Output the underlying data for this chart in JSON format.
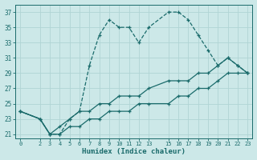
{
  "xlabel": "Humidex (Indice chaleur)",
  "bg_color": "#cce8e8",
  "line_color": "#1a6b6b",
  "grid_color": "#b0d4d4",
  "ylim": [
    20.5,
    38
  ],
  "xlim": [
    -0.5,
    23.5
  ],
  "yticks": [
    21,
    23,
    25,
    27,
    29,
    31,
    33,
    35,
    37
  ],
  "xticks": [
    0,
    2,
    3,
    4,
    5,
    6,
    7,
    8,
    9,
    10,
    11,
    12,
    13,
    15,
    16,
    17,
    18,
    19,
    20,
    21,
    22,
    23
  ],
  "series": [
    {
      "x": [
        0,
        2,
        3,
        4,
        5,
        6,
        7,
        8,
        9,
        10,
        11,
        12,
        13,
        15,
        16,
        17,
        18,
        19,
        20,
        21,
        22,
        23
      ],
      "y": [
        24,
        23,
        21,
        21,
        23,
        24,
        30,
        34,
        36,
        35,
        35,
        33,
        35,
        37,
        37,
        36,
        34,
        32,
        30,
        31,
        30,
        29
      ],
      "ls": "--"
    },
    {
      "x": [
        0,
        2,
        3,
        4,
        5,
        6,
        7,
        8,
        9,
        10,
        11,
        12,
        13,
        15,
        16,
        17,
        18,
        19,
        20,
        21,
        22,
        23
      ],
      "y": [
        24,
        23,
        21,
        22,
        23,
        24,
        24,
        25,
        25,
        26,
        26,
        26,
        27,
        28,
        28,
        28,
        29,
        29,
        30,
        31,
        30,
        29
      ],
      "ls": "-"
    },
    {
      "x": [
        0,
        2,
        3,
        4,
        5,
        6,
        7,
        8,
        9,
        10,
        11,
        12,
        13,
        15,
        16,
        17,
        18,
        19,
        20,
        21,
        22,
        23
      ],
      "y": [
        24,
        23,
        21,
        21,
        22,
        22,
        23,
        23,
        24,
        24,
        24,
        25,
        25,
        25,
        26,
        26,
        27,
        27,
        28,
        29,
        29,
        29
      ],
      "ls": "-"
    }
  ]
}
